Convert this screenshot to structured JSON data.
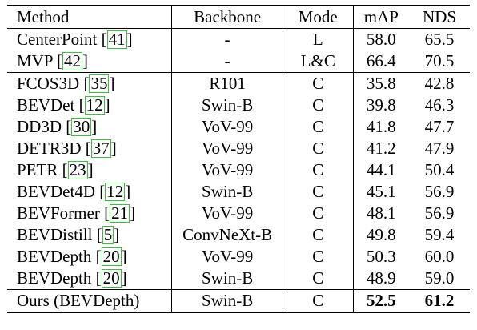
{
  "table": {
    "headers": [
      "Method",
      "Backbone",
      "Mode",
      "mAP",
      "NDS"
    ],
    "groups": [
      {
        "rows": [
          {
            "method": "CenterPoint",
            "cite": "41",
            "backbone": "-",
            "mode": "L",
            "map": "58.0",
            "nds": "65.5"
          },
          {
            "method": "MVP",
            "cite": "42",
            "backbone": "-",
            "mode": "L&C",
            "map": "66.4",
            "nds": "70.5"
          }
        ]
      },
      {
        "rows": [
          {
            "method": "FCOS3D",
            "cite": "35",
            "backbone": "R101",
            "mode": "C",
            "map": "35.8",
            "nds": "42.8"
          },
          {
            "method": "BEVDet",
            "cite": "12",
            "backbone": "Swin-B",
            "mode": "C",
            "map": "39.8",
            "nds": "46.3"
          },
          {
            "method": "DD3D",
            "cite": "30",
            "backbone": "VoV-99",
            "mode": "C",
            "map": "41.8",
            "nds": "47.7"
          },
          {
            "method": "DETR3D",
            "cite": "37",
            "backbone": "VoV-99",
            "mode": "C",
            "map": "41.2",
            "nds": "47.9"
          },
          {
            "method": "PETR",
            "cite": "23",
            "backbone": "VoV-99",
            "mode": "C",
            "map": "44.1",
            "nds": "50.4"
          },
          {
            "method": "BEVDet4D",
            "cite": "12",
            "backbone": "Swin-B",
            "mode": "C",
            "map": "45.1",
            "nds": "56.9"
          },
          {
            "method": "BEVFormer",
            "cite": "21",
            "backbone": "VoV-99",
            "mode": "C",
            "map": "48.1",
            "nds": "56.9"
          },
          {
            "method": "BEVDistill",
            "cite": "5",
            "backbone": "ConvNeXt-B",
            "mode": "C",
            "map": "49.8",
            "nds": "59.4"
          },
          {
            "method": "BEVDepth",
            "cite": "20",
            "backbone": "VoV-99",
            "mode": "C",
            "map": "50.3",
            "nds": "60.0"
          },
          {
            "method": "BEVDepth",
            "cite": "20",
            "backbone": "Swin-B",
            "mode": "C",
            "map": "48.9",
            "nds": "59.0"
          }
        ]
      },
      {
        "rows": [
          {
            "method": "Ours (BEVDepth)",
            "cite": "",
            "backbone": "Swin-B",
            "mode": "C",
            "map": "52.5",
            "nds": "61.2",
            "bold_scores": true
          }
        ]
      }
    ]
  },
  "colors": {
    "citation_box": "#35c435",
    "rule": "#000000"
  }
}
